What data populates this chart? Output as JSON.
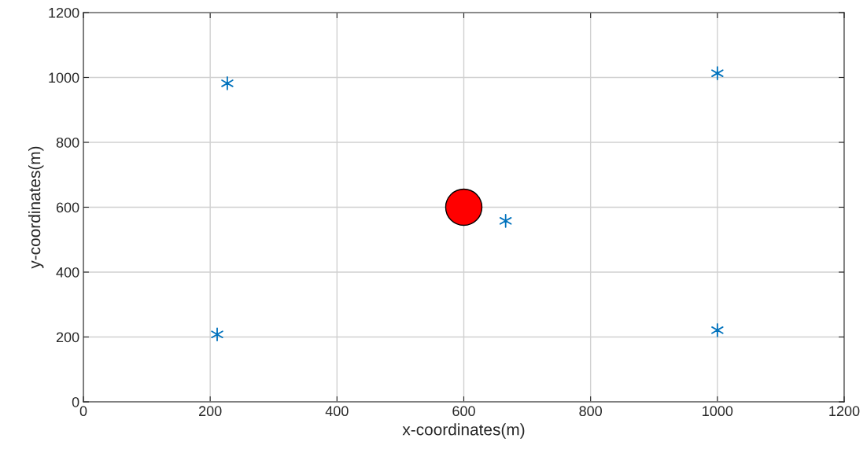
{
  "chart_data": {
    "type": "scatter",
    "xlabel": "x-coordinates(m)",
    "ylabel": "y-coordinates(m)",
    "series": [
      {
        "marker": "cross",
        "color": "#0072bd",
        "x": [
          227,
          1000,
          666,
          211,
          1000
        ],
        "values": [
          982,
          1013,
          558,
          208,
          221
        ]
      },
      {
        "marker": "circle",
        "color": "#ff0000",
        "x": [
          600
        ],
        "values": [
          600
        ]
      }
    ],
    "xlim": [
      0,
      1200
    ],
    "xticks": [
      0,
      200,
      400,
      600,
      800,
      1000,
      1200
    ],
    "ylim": [
      0,
      1200
    ],
    "yticks": [
      0,
      200,
      400,
      600,
      800,
      1000,
      1200
    ],
    "grid": true,
    "legend": false
  }
}
